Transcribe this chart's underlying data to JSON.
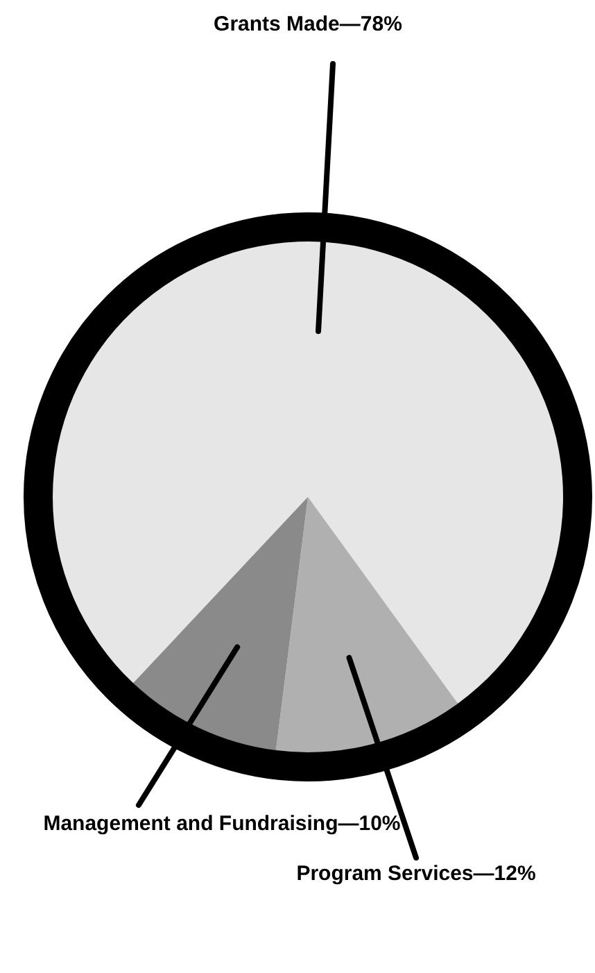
{
  "chart_data": {
    "type": "pie",
    "categories": [
      "Grants Made",
      "Program Services",
      "Management and Fundraising"
    ],
    "values": [
      78,
      12,
      10
    ],
    "colors": [
      "#e6e6e6",
      "#b0b0b0",
      "#8a8a8a"
    ],
    "value_labels": [
      "—78%",
      "—12%",
      "—10%"
    ]
  }
}
